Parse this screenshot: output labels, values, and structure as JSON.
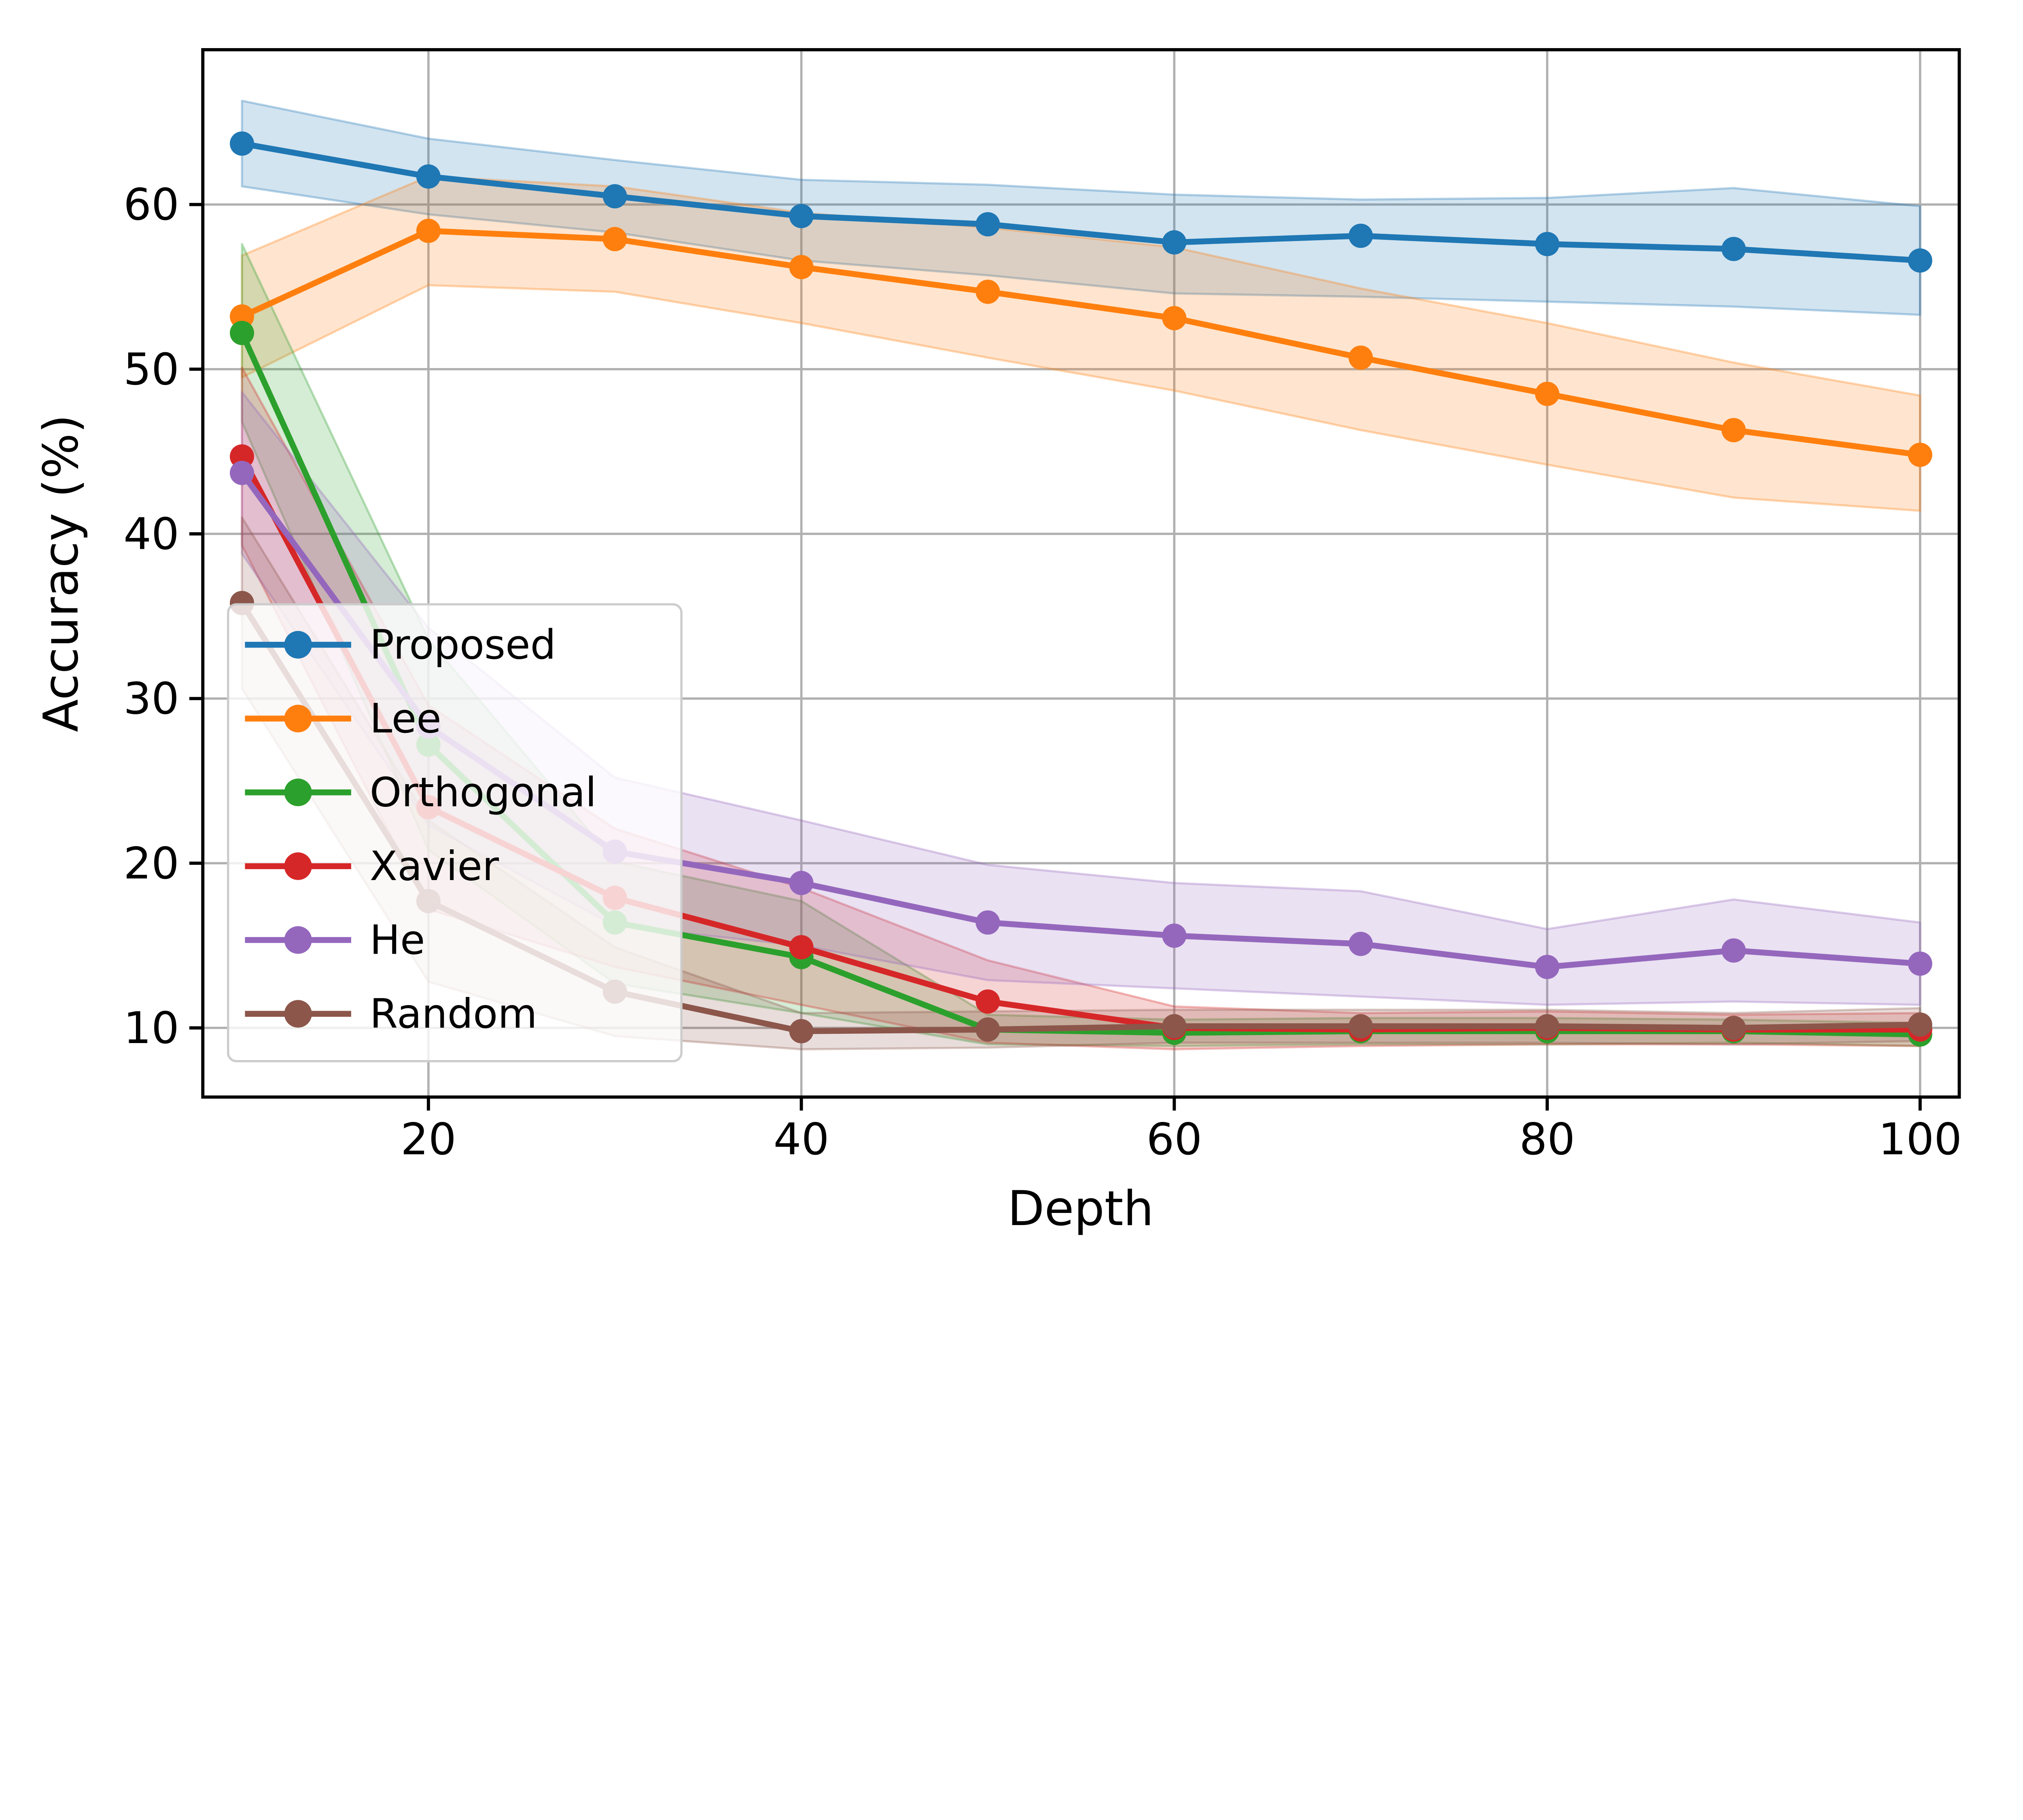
{
  "figure": {
    "background": "#ffffff"
  },
  "axes": {
    "xlabel": "Depth",
    "ylabel": "Accuracy (%)",
    "xlim": [
      7.9,
      102.1
    ],
    "ylim": [
      5.8,
      69.4
    ],
    "xticks": [
      20,
      40,
      60,
      80,
      100
    ],
    "yticks": [
      10,
      20,
      30,
      40,
      50,
      60
    ],
    "grid": true,
    "grid_color": "#b0b0b0",
    "spine_color": "#000000",
    "tick_color": "#000000"
  },
  "legend": {
    "location": "lower left",
    "labels": [
      "Proposed",
      "Lee",
      "Orthogonal",
      "Xavier",
      "He",
      "Random"
    ],
    "background": "#ffffff",
    "background_opacity": 0.8,
    "border_color": "#cccccc"
  },
  "chart_data": {
    "type": "line",
    "title": "",
    "xlabel": "Depth",
    "ylabel": "Accuracy (%)",
    "x": [
      10,
      20,
      30,
      40,
      50,
      60,
      70,
      80,
      90,
      100
    ],
    "xlim": [
      7.9,
      102.1
    ],
    "ylim": [
      5.8,
      69.4
    ],
    "grid": true,
    "legend_position": "lower left",
    "band_opacity": 0.2,
    "series": [
      {
        "name": "Proposed",
        "color": "#1f77b4",
        "values": [
          63.7,
          61.7,
          60.5,
          59.3,
          58.8,
          57.7,
          58.1,
          57.6,
          57.3,
          56.6
        ],
        "band_low": [
          61.1,
          59.4,
          58.3,
          56.6,
          55.7,
          54.6,
          54.4,
          54.1,
          53.8,
          53.3
        ],
        "band_high": [
          66.3,
          64.0,
          62.7,
          61.5,
          61.2,
          60.6,
          60.3,
          60.4,
          61.0,
          59.9
        ]
      },
      {
        "name": "Lee",
        "color": "#ff7f0e",
        "values": [
          53.2,
          58.4,
          57.9,
          56.2,
          54.7,
          53.1,
          50.7,
          48.5,
          46.3,
          44.8
        ],
        "band_low": [
          49.5,
          55.1,
          54.7,
          52.8,
          50.7,
          48.7,
          46.3,
          44.2,
          42.2,
          41.4
        ],
        "band_high": [
          56.9,
          61.7,
          61.1,
          59.5,
          58.6,
          57.4,
          54.9,
          52.8,
          50.4,
          48.4
        ]
      },
      {
        "name": "Orthogonal",
        "color": "#2ca02c",
        "values": [
          52.2,
          27.2,
          16.4,
          14.3,
          9.9,
          9.7,
          9.8,
          9.8,
          9.8,
          9.6
        ],
        "band_low": [
          46.8,
          20.8,
          12.7,
          10.9,
          9.0,
          8.9,
          9.0,
          9.0,
          9.1,
          8.9
        ],
        "band_high": [
          57.6,
          33.6,
          20.1,
          17.7,
          10.8,
          10.5,
          10.6,
          10.6,
          10.5,
          10.3
        ]
      },
      {
        "name": "Xavier",
        "color": "#d62728",
        "values": [
          44.7,
          23.4,
          17.9,
          14.9,
          11.6,
          10.0,
          9.9,
          10.0,
          9.9,
          9.9
        ],
        "band_low": [
          39.3,
          17.2,
          13.7,
          11.4,
          9.1,
          8.7,
          8.9,
          9.0,
          9.0,
          8.9
        ],
        "band_high": [
          50.1,
          29.6,
          22.1,
          18.5,
          14.1,
          11.3,
          10.9,
          11.0,
          10.8,
          10.9
        ]
      },
      {
        "name": "He",
        "color": "#9467bd",
        "values": [
          43.7,
          28.3,
          20.7,
          18.8,
          16.4,
          15.6,
          15.1,
          13.7,
          14.7,
          13.9
        ],
        "band_low": [
          38.8,
          22.3,
          16.2,
          15.0,
          12.9,
          12.4,
          11.9,
          11.4,
          11.6,
          11.4
        ],
        "band_high": [
          48.6,
          34.3,
          25.2,
          22.6,
          19.9,
          18.8,
          18.3,
          16.0,
          17.8,
          16.4
        ]
      },
      {
        "name": "Random",
        "color": "#8c564b",
        "values": [
          35.8,
          17.7,
          12.2,
          9.8,
          9.9,
          10.1,
          10.1,
          10.1,
          10.0,
          10.2
        ],
        "band_low": [
          30.6,
          12.8,
          9.5,
          8.7,
          8.8,
          9.1,
          9.1,
          9.1,
          9.0,
          9.2
        ],
        "band_high": [
          41.0,
          22.6,
          14.9,
          10.9,
          11.0,
          11.1,
          11.1,
          11.1,
          10.9,
          11.2
        ]
      }
    ]
  }
}
